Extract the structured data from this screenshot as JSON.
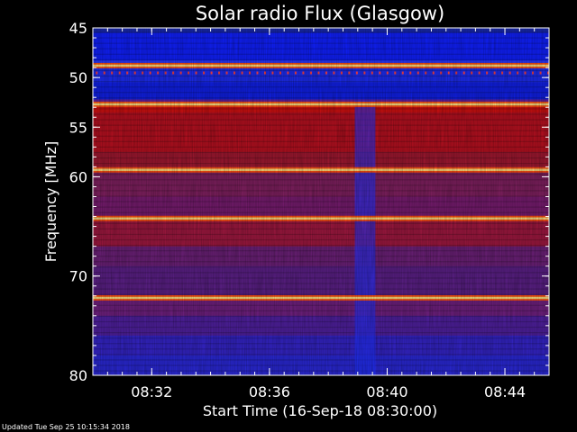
{
  "chart_data": {
    "type": "heatmap",
    "title": "Solar radio Flux (Glasgow)",
    "xlabel": "Start Time (16-Sep-18 08:30:00)",
    "ylabel": "Frequency [MHz]",
    "x_range_minutes": [
      0,
      15.5
    ],
    "ylim": [
      45,
      80
    ],
    "x_ticks": [
      {
        "minute": 2,
        "label": "08:32"
      },
      {
        "minute": 6,
        "label": "08:36"
      },
      {
        "minute": 10,
        "label": "08:40"
      },
      {
        "minute": 14,
        "label": "08:44"
      }
    ],
    "y_ticks": [
      {
        "value": 45,
        "label": "45"
      },
      {
        "value": 50,
        "label": "50"
      },
      {
        "value": 55,
        "label": "55"
      },
      {
        "value": 60,
        "label": "60"
      },
      {
        "value": 70,
        "label": "70"
      },
      {
        "value": 80,
        "label": "80"
      }
    ],
    "intense_bands_mhz": [
      48.8,
      52.7,
      59.3,
      64.2,
      72.2
    ],
    "dim_period_minutes": [
      8.9,
      9.6
    ],
    "colors": {
      "background": "#000000",
      "low": "#1020ff",
      "mid": "#7020a0",
      "high": "#d01010",
      "peak": "#ffe080"
    }
  },
  "footer": {
    "updated": "Updated Tue Sep 25 10:15:34 2018"
  }
}
